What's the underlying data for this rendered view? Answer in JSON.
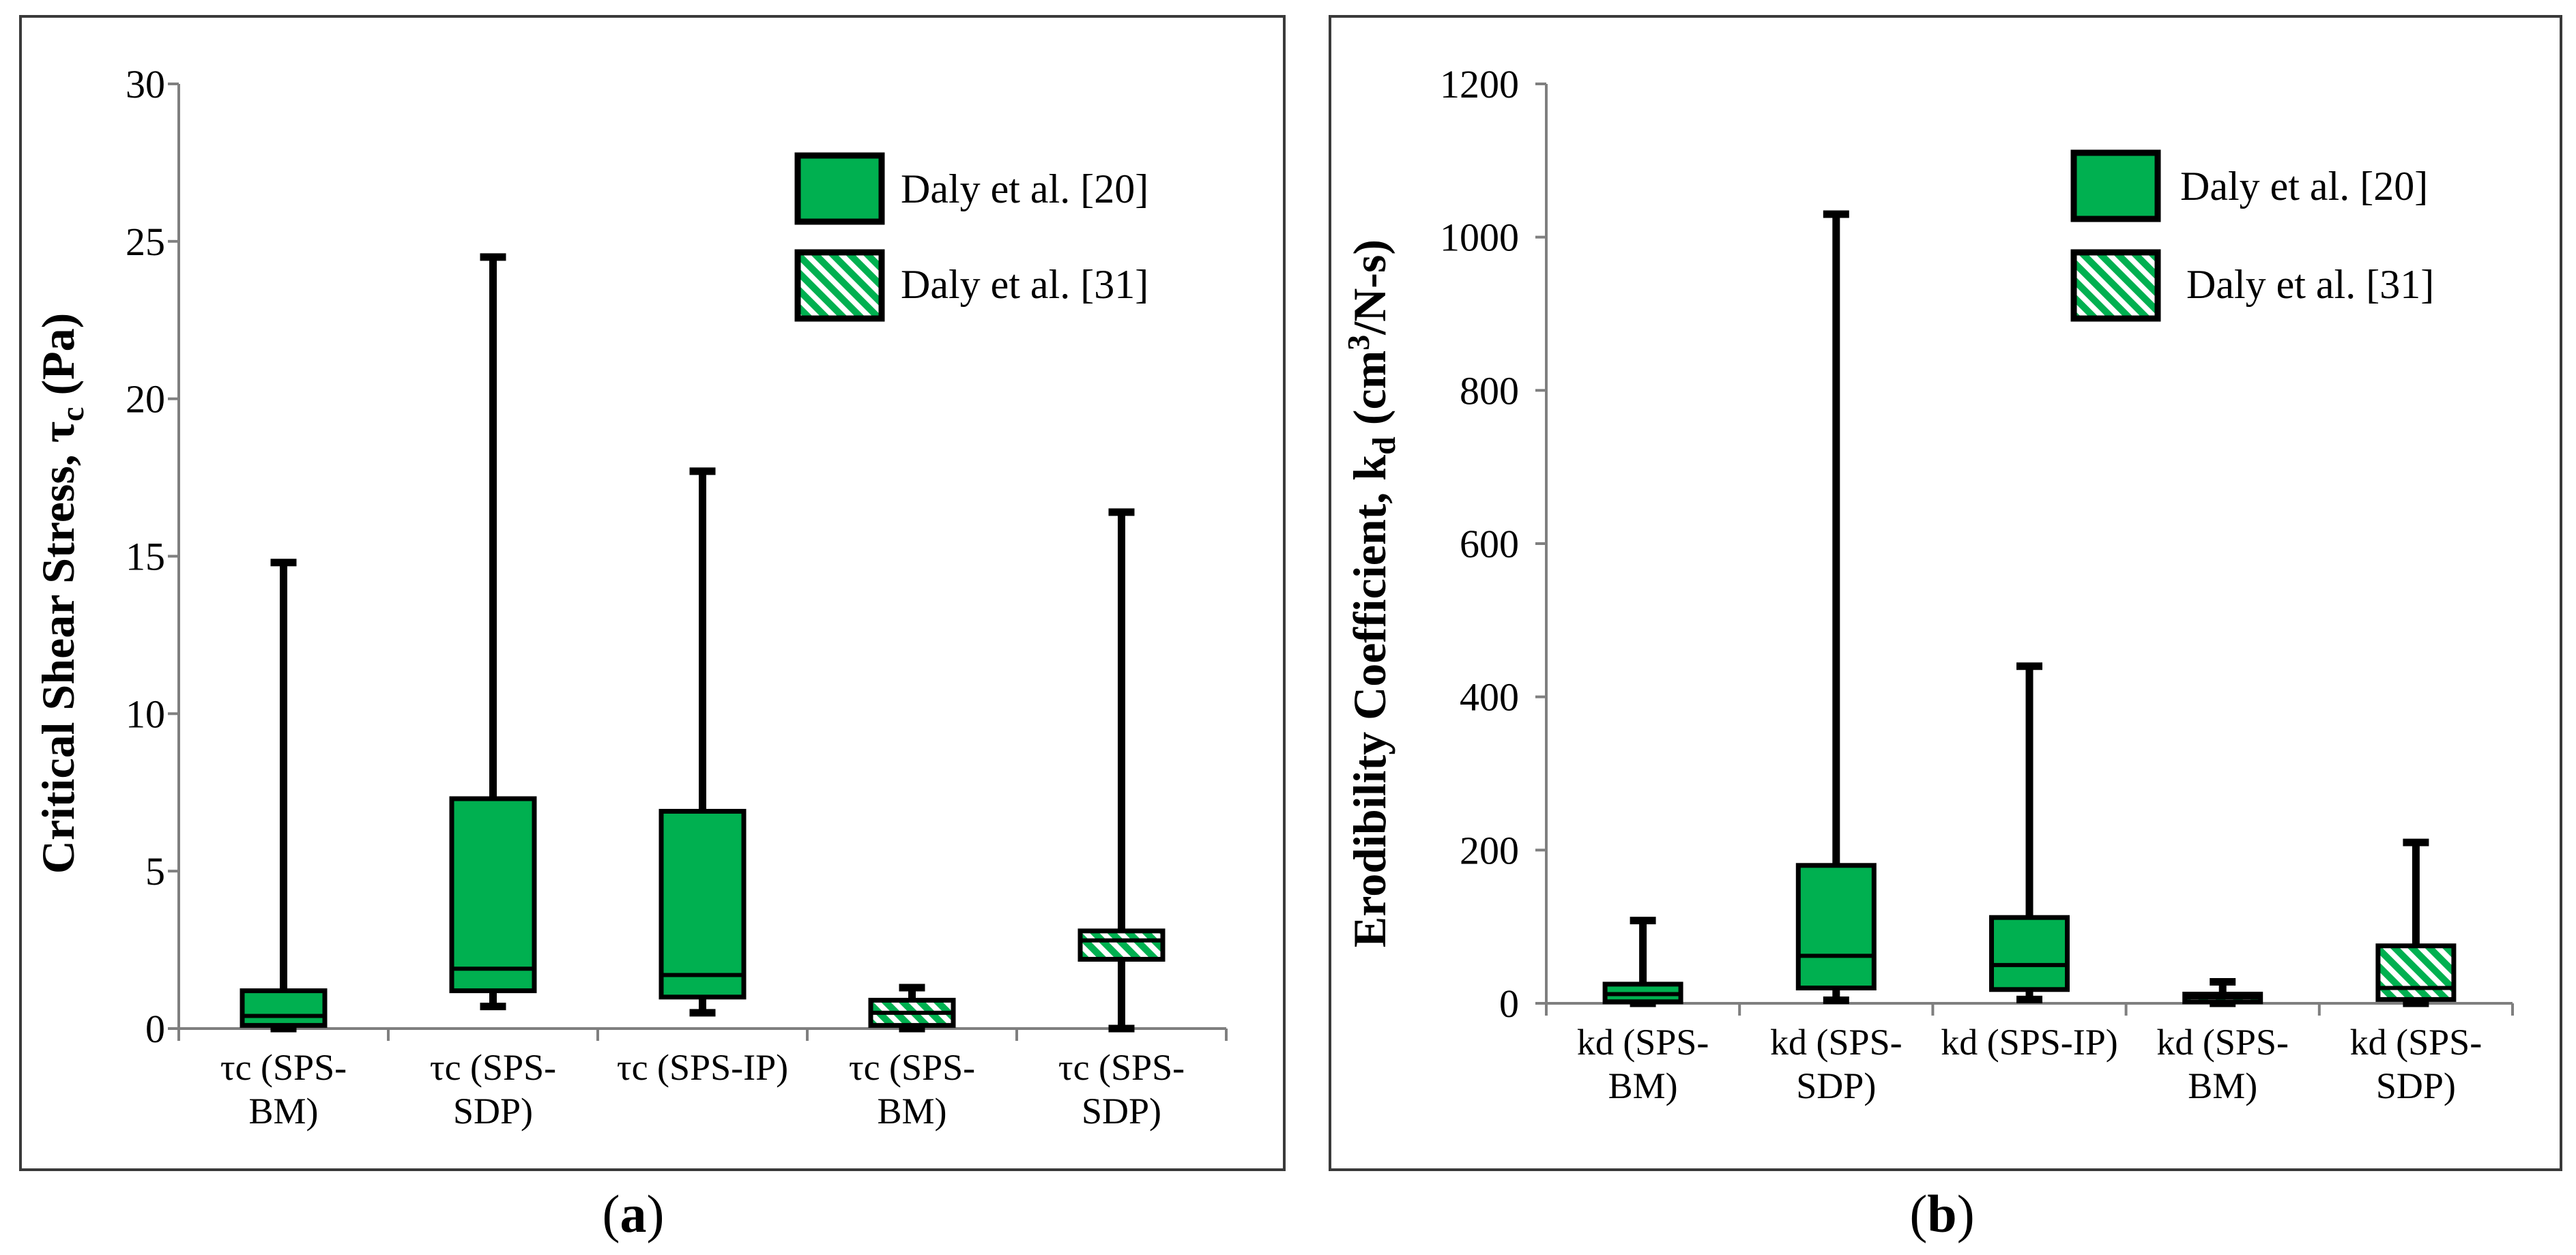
{
  "captions": {
    "a": {
      "open": "(",
      "letter": "a",
      "close": ")"
    },
    "b": {
      "open": "(",
      "letter": "b",
      "close": ")"
    }
  },
  "colors": {
    "fill": "#00b050",
    "stroke": "#000000",
    "axis": "#7f7f7f"
  },
  "chart_data": [
    {
      "type": "box",
      "panel": "a",
      "ylabel": "Critical Shear Stress, τc (Pa)",
      "ylabel_parts": {
        "main": "Critical Shear Stress, τ",
        "sub": "c",
        "unit": " (Pa)"
      },
      "ylim": [
        0,
        30
      ],
      "yticks": [
        0,
        5,
        10,
        15,
        20,
        25,
        30
      ],
      "categories": [
        [
          "τc (SPS-",
          "BM)"
        ],
        [
          "τc (SPS-",
          "SDP)"
        ],
        [
          "τc (SPS-IP)"
        ],
        [
          "τc (SPS-",
          "BM)"
        ],
        [
          "τc (SPS-",
          "SDP)"
        ]
      ],
      "legend": [
        {
          "label": "Daly et al. [20]",
          "pattern": "solid"
        },
        {
          "label": "Daly et al. [31]",
          "pattern": "hatched"
        }
      ],
      "boxes": [
        {
          "min": 0,
          "q1": 0.1,
          "median": 0.4,
          "q3": 1.2,
          "max": 14.8,
          "source": "Daly et al. [20]"
        },
        {
          "min": 0.7,
          "q1": 1.2,
          "median": 1.9,
          "q3": 7.3,
          "max": 24.5,
          "source": "Daly et al. [20]"
        },
        {
          "min": 0.5,
          "q1": 1.0,
          "median": 1.7,
          "q3": 6.9,
          "max": 17.7,
          "source": "Daly et al. [20]"
        },
        {
          "min": 0.0,
          "q1": 0.1,
          "median": 0.5,
          "q3": 0.9,
          "max": 1.3,
          "source": "Daly et al. [31]"
        },
        {
          "min": 0.0,
          "q1": 2.2,
          "median": 2.8,
          "q3": 3.1,
          "max": 16.4,
          "source": "Daly et al. [31]"
        }
      ]
    },
    {
      "type": "box",
      "panel": "b",
      "ylabel": "Erodibility Coefficient, kd (cm3/N-s)",
      "ylabel_parts": {
        "main": "Erodibility Coefficient, k",
        "sub": "d",
        "unit_pre": " (cm",
        "sup": "3",
        "unit_post": "/N-s)"
      },
      "ylim": [
        0,
        1200
      ],
      "yticks": [
        0,
        200,
        400,
        600,
        800,
        1000,
        1200
      ],
      "categories": [
        [
          "kd (SPS-",
          "BM)"
        ],
        [
          "kd (SPS-",
          "SDP)"
        ],
        [
          "kd (SPS-IP)"
        ],
        [
          "kd (SPS-",
          "BM)"
        ],
        [
          "kd (SPS-",
          "SDP)"
        ]
      ],
      "legend": [
        {
          "label": "Daly et al. [20]",
          "pattern": "solid"
        },
        {
          "label": "Daly et al. [31]",
          "pattern": "hatched"
        }
      ],
      "boxes": [
        {
          "min": 0,
          "q1": 2,
          "median": 12,
          "q3": 25,
          "max": 108,
          "source": "Daly et al. [20]"
        },
        {
          "min": 4,
          "q1": 20,
          "median": 62,
          "q3": 180,
          "max": 1030,
          "source": "Daly et al. [20]"
        },
        {
          "min": 5,
          "q1": 18,
          "median": 50,
          "q3": 112,
          "max": 440,
          "source": "Daly et al. [20]"
        },
        {
          "min": 0,
          "q1": 2,
          "median": 8,
          "q3": 12,
          "max": 28,
          "source": "Daly et al. [31]"
        },
        {
          "min": 0,
          "q1": 5,
          "median": 20,
          "q3": 75,
          "max": 210,
          "source": "Daly et al. [31]"
        }
      ]
    }
  ]
}
